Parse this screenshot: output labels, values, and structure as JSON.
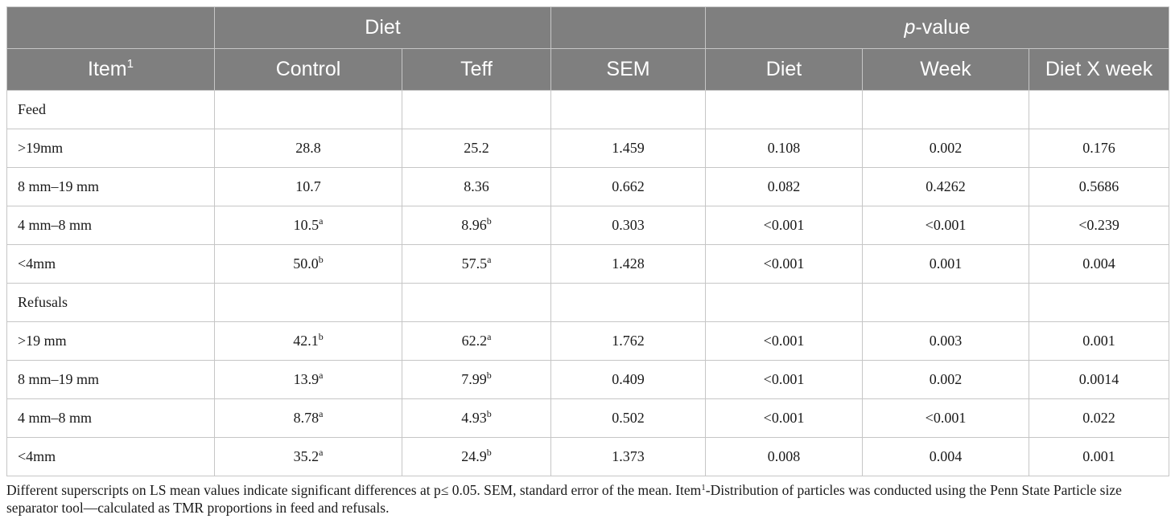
{
  "header": {
    "group_diet": "Diet",
    "group_pvalue_italic": "p",
    "group_pvalue_rest": "-value",
    "item_label": "Item",
    "item_sup": "1",
    "col_control": "Control",
    "col_teff": "Teff",
    "col_sem": "SEM",
    "col_diet": "Diet",
    "col_week": "Week",
    "col_dietxweek": "Diet X week"
  },
  "rows": [
    {
      "item": "Feed",
      "section": true
    },
    {
      "item": ">19mm",
      "control": "28.8",
      "control_sup": "",
      "teff": "25.2",
      "teff_sup": "",
      "sem": "1.459",
      "diet": "0.108",
      "week": "0.002",
      "dxw": "0.176"
    },
    {
      "item": "8 mm–19 mm",
      "control": "10.7",
      "control_sup": "",
      "teff": "8.36",
      "teff_sup": "",
      "sem": "0.662",
      "diet": "0.082",
      "week": "0.4262",
      "dxw": "0.5686"
    },
    {
      "item": "4 mm–8 mm",
      "control": "10.5",
      "control_sup": "a",
      "teff": "8.96",
      "teff_sup": "b",
      "sem": "0.303",
      "diet": "<0.001",
      "week": "<0.001",
      "dxw": "<0.239"
    },
    {
      "item": "<4mm",
      "control": "50.0",
      "control_sup": "b",
      "teff": "57.5",
      "teff_sup": "a",
      "sem": "1.428",
      "diet": "<0.001",
      "week": "0.001",
      "dxw": "0.004"
    },
    {
      "item": "Refusals",
      "section": true
    },
    {
      "item": ">19 mm",
      "control": "42.1",
      "control_sup": "b",
      "teff": "62.2",
      "teff_sup": "a",
      "sem": "1.762",
      "diet": "<0.001",
      "week": "0.003",
      "dxw": "0.001"
    },
    {
      "item": "8 mm–19 mm",
      "control": "13.9",
      "control_sup": "a",
      "teff": "7.99",
      "teff_sup": "b",
      "sem": "0.409",
      "diet": "<0.001",
      "week": "0.002",
      "dxw": "0.0014"
    },
    {
      "item": "4 mm–8 mm",
      "control": "8.78",
      "control_sup": "a",
      "teff": "4.93",
      "teff_sup": "b",
      "sem": "0.502",
      "diet": "<0.001",
      "week": "<0.001",
      "dxw": "0.022"
    },
    {
      "item": "<4mm",
      "control": "35.2",
      "control_sup": "a",
      "teff": "24.9",
      "teff_sup": "b",
      "sem": "1.373",
      "diet": "0.008",
      "week": "0.004",
      "dxw": "0.001"
    }
  ],
  "footnote": {
    "line1": "Different superscripts on LS mean values indicate significant differences at p≤ 0.05. SEM, standard error of the mean. Item",
    "sup": "1",
    "line2": "-Distribution of particles was conducted using the Penn State Particle size separator tool—calculated as TMR proportions in feed and refusals."
  },
  "colors": {
    "header_bg": "#7f7f7f",
    "header_text": "#ffffff",
    "grid": "#c6c6c6"
  }
}
